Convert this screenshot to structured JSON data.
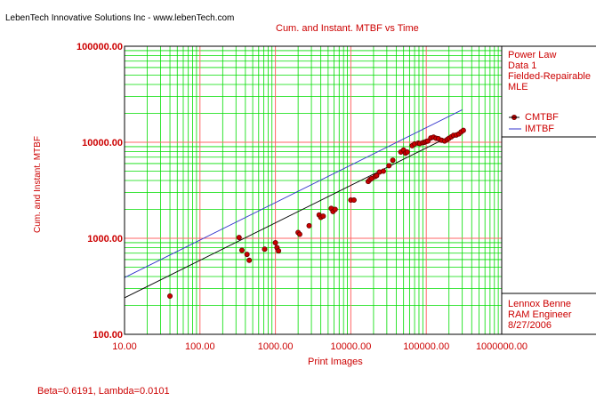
{
  "header": "LebenTech Innovative Solutions Inc - www.lebenTech.com",
  "footer": "Beta=0.6191, Lambda=0.0101",
  "legend": {
    "lines": [
      "Power Law",
      "Data 1",
      "Fielded-Repairable",
      "MLE"
    ],
    "series": [
      {
        "name": "CMTBF",
        "color": "#cc0000",
        "marker": "dot"
      },
      {
        "name": "IMTBF",
        "color": "#3333cc",
        "marker": "line"
      }
    ]
  },
  "signature": [
    "Lennox Benne",
    "RAM Engineer",
    "8/27/2006"
  ],
  "colors": {
    "text": "#cc0000",
    "minor_grid": "#00dd00",
    "major_grid": "#ff6666",
    "cum_line": "#000000",
    "inst_line": "#3333cc"
  },
  "chart_data": {
    "type": "scatter",
    "title": "Cum. and Instant. MTBF vs Time",
    "xlabel": "Print Images",
    "ylabel": "Cum. and Instant. MTBF",
    "xscale": "log",
    "yscale": "log",
    "xlim": [
      10,
      1000000
    ],
    "ylim": [
      100,
      100000
    ],
    "x_ticks": [
      "10.00",
      "100.00",
      "1000.00",
      "10000.00",
      "100000.00",
      "1000000.00"
    ],
    "y_ticks": [
      "100.00",
      "1000.00",
      "10000.00",
      "100000.00"
    ],
    "grid": true,
    "legend_position": "right",
    "lines": [
      {
        "name": "CMTBF",
        "x": [
          10,
          300000
        ],
        "y": [
          240,
          13400
        ]
      },
      {
        "name": "IMTBF",
        "x": [
          10,
          300000
        ],
        "y": [
          390,
          21800
        ]
      }
    ],
    "series": [
      {
        "name": "CMTBF",
        "x": [
          40,
          330,
          360,
          420,
          450,
          720,
          1000,
          1050,
          1100,
          2000,
          2100,
          2800,
          3800,
          4000,
          4300,
          5500,
          5800,
          6200,
          10000,
          11000,
          17000,
          18000,
          19000,
          21000,
          22000,
          24000,
          27000,
          32000,
          36000,
          46000,
          50000,
          53000,
          56000,
          65000,
          70000,
          78000,
          82000,
          90000,
          95000,
          100000,
          105000,
          115000,
          125000,
          135000,
          145000,
          160000,
          175000,
          190000,
          200000,
          215000,
          230000,
          250000,
          270000,
          290000,
          310000
        ],
        "y": [
          250,
          1020,
          750,
          680,
          590,
          770,
          900,
          800,
          740,
          1150,
          1100,
          1350,
          1750,
          1650,
          1700,
          2050,
          1900,
          2000,
          2500,
          2500,
          3900,
          4100,
          4200,
          4400,
          4500,
          4900,
          5000,
          5700,
          6500,
          7900,
          8300,
          7700,
          7900,
          9200,
          9600,
          9800,
          9700,
          9900,
          10000,
          10200,
          10300,
          11100,
          11300,
          11000,
          10900,
          10500,
          10300,
          10700,
          11000,
          11400,
          11800,
          11900,
          12200,
          12800,
          13300
        ]
      }
    ]
  }
}
